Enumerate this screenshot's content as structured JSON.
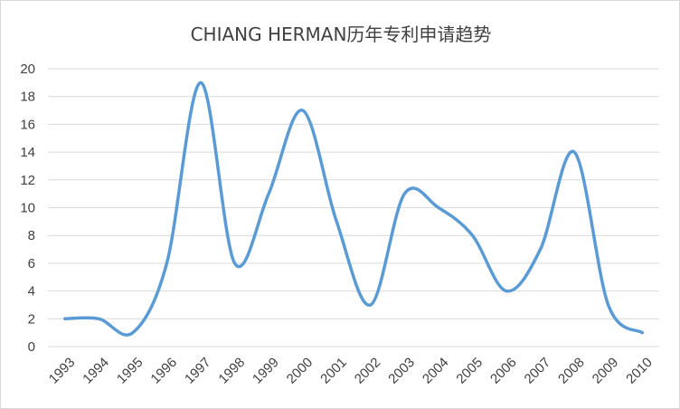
{
  "chart_data": {
    "type": "line",
    "title": "CHIANG HERMAN历年专利申请趋势",
    "xlabel": "",
    "ylabel": "",
    "smooth": true,
    "grid": "horizontal",
    "legend": "none",
    "categories": [
      "1993",
      "1994",
      "1995",
      "1996",
      "1997",
      "1998",
      "1999",
      "2000",
      "2001",
      "2002",
      "2003",
      "2004",
      "2005",
      "2006",
      "2007",
      "2008",
      "2009",
      "2010"
    ],
    "series": [
      {
        "values": [
          2,
          2,
          1,
          6,
          19,
          6,
          11,
          17,
          9,
          3,
          11,
          10,
          8,
          4,
          7,
          14,
          3,
          1
        ]
      }
    ],
    "ylim": [
      0,
      20
    ],
    "yticks": [
      0,
      2,
      4,
      6,
      8,
      10,
      12,
      14,
      16,
      18,
      20
    ],
    "colors": {
      "series": "#5b9bd5",
      "grid": "#d9d9d9",
      "text": "#404040"
    }
  }
}
